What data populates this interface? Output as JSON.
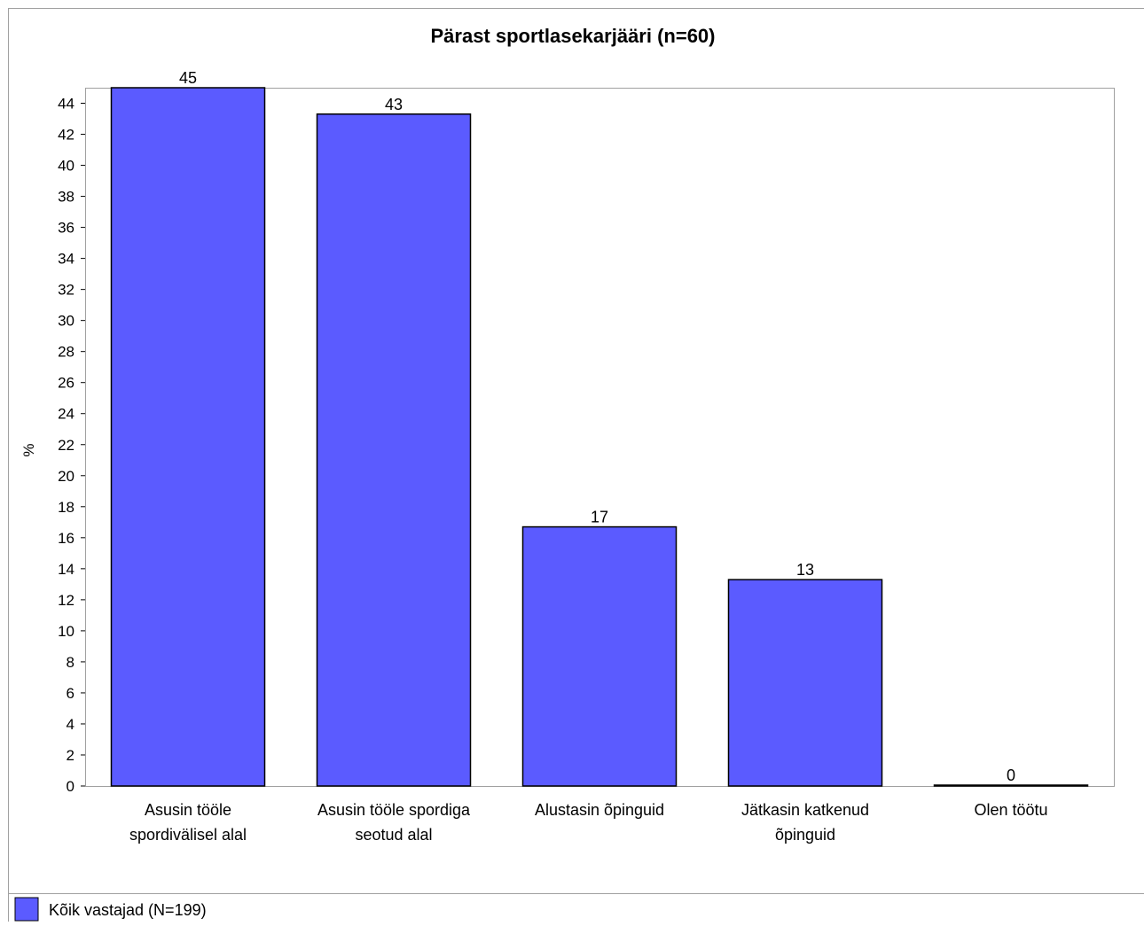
{
  "chart_data": {
    "type": "bar",
    "title": "Pärast sportlasekarjääri (n=60)",
    "ylabel": "%",
    "xlabel": "",
    "ylim": [
      0,
      45
    ],
    "y_ticks": [
      0,
      2,
      4,
      6,
      8,
      10,
      12,
      14,
      16,
      18,
      20,
      22,
      24,
      26,
      28,
      30,
      32,
      34,
      36,
      38,
      40,
      42,
      44
    ],
    "categories": [
      [
        "Asusin tööle",
        "spordivälisel alal"
      ],
      [
        "Asusin tööle spordiga",
        "seotud alal"
      ],
      [
        "Alustasin õpinguid"
      ],
      [
        "Jätkasin katkenud",
        "õpinguid"
      ],
      [
        "Olen töötu"
      ]
    ],
    "series": [
      {
        "name": "Kõik vastajad (N=199)",
        "color": "#5b5bff",
        "values": [
          45,
          43.3,
          16.7,
          13.3,
          0
        ],
        "labels": [
          "45",
          "43",
          "17",
          "13",
          "0"
        ]
      }
    ],
    "grid": false,
    "legend": "bottom-left"
  }
}
